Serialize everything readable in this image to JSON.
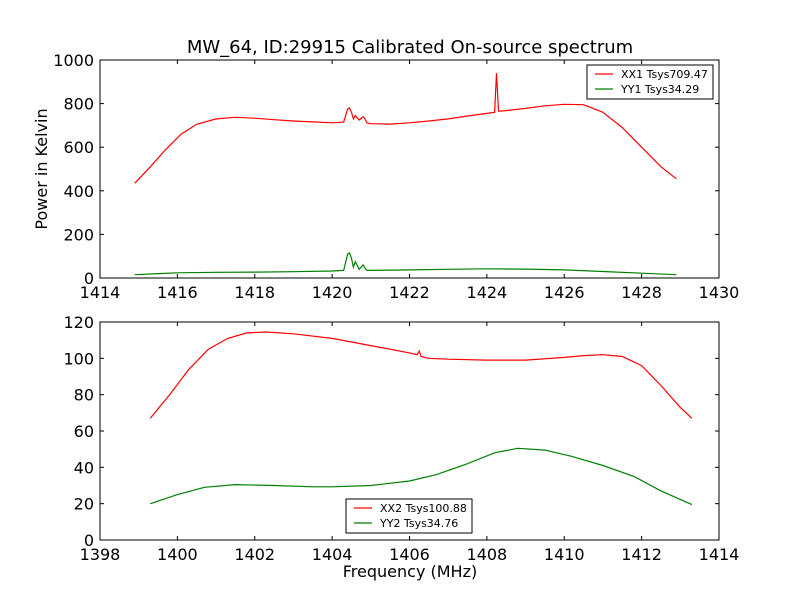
{
  "chart_data": [
    {
      "type": "line",
      "title": "MW_64, ID:29915 Calibrated On-source spectrum",
      "xlabel": "",
      "ylabel": "Power in Kelvin",
      "xlim": [
        1414,
        1430
      ],
      "ylim": [
        0,
        1000
      ],
      "xticks": [
        "1414",
        "1416",
        "1418",
        "1420",
        "1422",
        "1424",
        "1426",
        "1428",
        "1430"
      ],
      "yticks": [
        "0",
        "200",
        "400",
        "600",
        "800",
        "1000"
      ],
      "grid": false,
      "legend_position": "top-right",
      "series": [
        {
          "name": "XX1 Tsys709.47",
          "color": "#ff0000",
          "x": [
            1414.9,
            1415.3,
            1415.7,
            1416.1,
            1416.5,
            1417.0,
            1417.5,
            1418.0,
            1418.5,
            1419.0,
            1419.5,
            1420.0,
            1420.3,
            1420.4,
            1420.45,
            1420.5,
            1420.55,
            1420.6,
            1420.7,
            1420.8,
            1420.85,
            1420.9,
            1421.0,
            1421.5,
            1422.0,
            1422.5,
            1423.0,
            1423.5,
            1424.0,
            1424.2,
            1424.25,
            1424.3,
            1424.5,
            1425.0,
            1425.5,
            1426.0,
            1426.5,
            1427.0,
            1427.5,
            1428.0,
            1428.5,
            1428.9
          ],
          "y": [
            435,
            510,
            590,
            660,
            705,
            730,
            737,
            733,
            726,
            720,
            716,
            712,
            715,
            775,
            780,
            760,
            730,
            745,
            725,
            740,
            730,
            712,
            708,
            706,
            712,
            720,
            730,
            743,
            755,
            760,
            940,
            765,
            768,
            778,
            790,
            797,
            795,
            760,
            690,
            600,
            510,
            455
          ]
        },
        {
          "name": "YY1 Tsys34.29",
          "color": "#008000",
          "x": [
            1414.9,
            1415.5,
            1416.0,
            1417.0,
            1418.0,
            1419.0,
            1420.0,
            1420.3,
            1420.4,
            1420.45,
            1420.5,
            1420.55,
            1420.6,
            1420.7,
            1420.8,
            1420.85,
            1420.9,
            1421.0,
            1422.0,
            1423.0,
            1424.0,
            1425.0,
            1426.0,
            1427.0,
            1428.0,
            1428.9
          ],
          "y": [
            15,
            20,
            24,
            26,
            27,
            29,
            32,
            35,
            110,
            115,
            90,
            50,
            75,
            40,
            60,
            45,
            35,
            35,
            37,
            40,
            42,
            41,
            37,
            30,
            22,
            15
          ]
        }
      ]
    },
    {
      "type": "line",
      "title": "",
      "xlabel": "Frequency (MHz)",
      "ylabel": "",
      "xlim": [
        1398,
        1414
      ],
      "ylim": [
        0,
        120
      ],
      "xticks": [
        "1398",
        "1400",
        "1402",
        "1404",
        "1406",
        "1408",
        "1410",
        "1412",
        "1414"
      ],
      "yticks": [
        "0",
        "20",
        "40",
        "60",
        "80",
        "100",
        "120"
      ],
      "grid": false,
      "legend_position": "bottom-center",
      "series": [
        {
          "name": "XX2 Tsys100.88",
          "color": "#ff0000",
          "x": [
            1399.3,
            1399.8,
            1400.3,
            1400.8,
            1401.3,
            1401.8,
            1402.3,
            1403.0,
            1404.0,
            1405.0,
            1406.0,
            1406.2,
            1406.25,
            1406.3,
            1406.5,
            1407.0,
            1408.0,
            1409.0,
            1410.0,
            1410.5,
            1411.0,
            1411.5,
            1412.0,
            1412.5,
            1413.0,
            1413.3
          ],
          "y": [
            67,
            80,
            94,
            105,
            111,
            114,
            114.5,
            113.5,
            111,
            107,
            103,
            102,
            104,
            101,
            100,
            99.5,
            99,
            99,
            100.5,
            101.5,
            102,
            101,
            96,
            85,
            73,
            67
          ]
        },
        {
          "name": "YY2 Tsys34.76",
          "color": "#008000",
          "x": [
            1399.3,
            1400.0,
            1400.7,
            1401.5,
            1402.5,
            1403.5,
            1404.0,
            1405.0,
            1406.0,
            1406.7,
            1407.5,
            1408.2,
            1408.8,
            1409.5,
            1410.2,
            1411.0,
            1411.8,
            1412.5,
            1413.3
          ],
          "y": [
            20,
            25,
            29,
            30.5,
            30,
            29.3,
            29.3,
            30,
            32.5,
            36,
            42,
            48,
            50.5,
            49.5,
            46,
            41,
            35,
            27,
            19.5
          ]
        }
      ]
    }
  ]
}
